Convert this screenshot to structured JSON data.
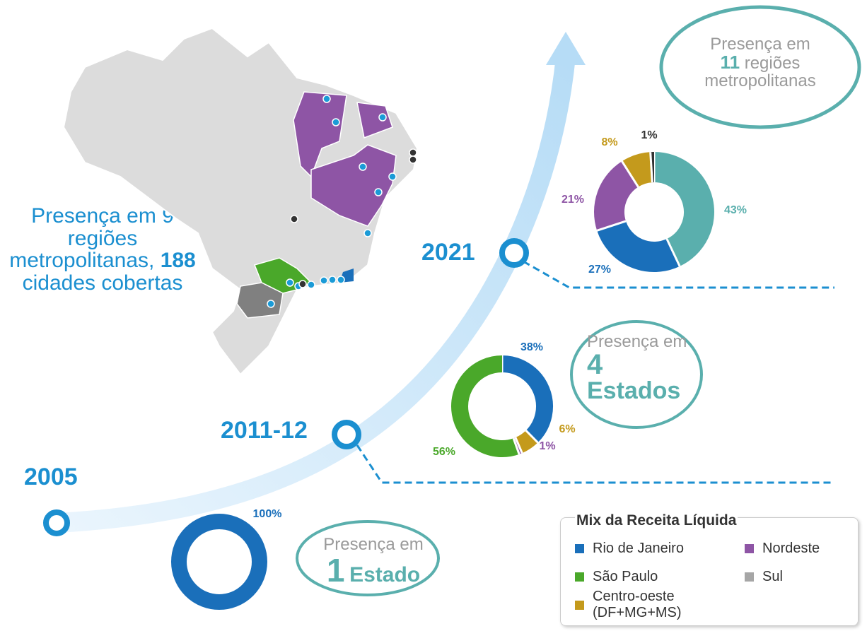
{
  "map_text": {
    "pre": "Presença em",
    "num": "9",
    "mid": "regiões metropolitanas,",
    "num2": "188",
    "post": "cidades cobertas"
  },
  "timeline": [
    {
      "year": "2005",
      "pre": "Presença em",
      "num": "1",
      "post": "Estado"
    },
    {
      "year": "2011-12",
      "pre": "Presença em",
      "num": "4",
      "post": "Estados"
    },
    {
      "year": "2021",
      "pre": "Presença em",
      "num": "11",
      "post": "regiões metropolitanas"
    }
  ],
  "legend": {
    "title": "Mix da Receita Líquida",
    "items": [
      {
        "name": "Rio de Janeiro",
        "color": "#1a6fba"
      },
      {
        "name": "Nordeste",
        "color": "#8e55a5"
      },
      {
        "name": "São Paulo",
        "color": "#4aa82a"
      },
      {
        "name": "Sul",
        "color": "#a6a6a6"
      },
      {
        "name": "Centro-oeste (DF+MG+MS)",
        "color": "#c49a1c"
      }
    ]
  },
  "chart_data": [
    {
      "type": "donut",
      "values": [
        100
      ],
      "value_labels": [
        "100%"
      ],
      "colors": [
        "#1a6fba"
      ]
    },
    {
      "type": "donut",
      "values": [
        38,
        6,
        1,
        56
      ],
      "value_labels": [
        "38%",
        "6%",
        "1%",
        "56%"
      ],
      "colors": [
        "#1a6fba",
        "#c49a1c",
        "#8e55a5",
        "#4aa82a"
      ]
    },
    {
      "type": "donut",
      "values": [
        43,
        27,
        21,
        8,
        1
      ],
      "value_labels": [
        "43%",
        "27%",
        "21%",
        "8%",
        "1%"
      ],
      "colors": [
        "#5aafad",
        "#1a6fba",
        "#8e55a5",
        "#c49a1c",
        "#333333"
      ]
    }
  ]
}
